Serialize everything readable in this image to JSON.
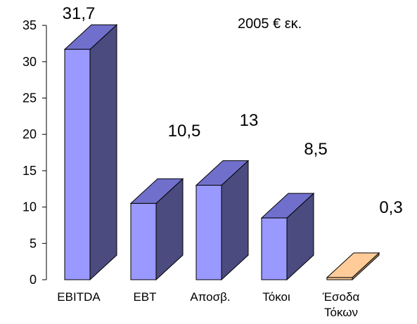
{
  "chart_data": {
    "type": "bar",
    "style": "3d-column",
    "categories": [
      "EBITDA",
      "EBT",
      "Αποσβ.",
      "Τόκοι",
      "Έσοδα Τόκων"
    ],
    "category_lines": [
      [
        "EBITDA"
      ],
      [
        "EBT"
      ],
      [
        "Αποσβ."
      ],
      [
        "Τόκοι"
      ],
      [
        "Έσοδα",
        "Τόκων"
      ]
    ],
    "values": [
      31.7,
      10.5,
      13,
      8.5,
      0.3
    ],
    "value_labels": [
      "31,7",
      "10,5",
      "13",
      "8,5",
      "0,3"
    ],
    "unit_annotation": "2005 € εκ.",
    "ylim": [
      0,
      35
    ],
    "yticks": [
      0,
      5,
      10,
      15,
      20,
      25,
      30,
      35
    ],
    "colors": {
      "front": [
        "#9999ff",
        "#9999ff",
        "#9999ff",
        "#9999ff",
        "#ffcc99"
      ],
      "top": [
        "#7070cc",
        "#7070cc",
        "#7070cc",
        "#7070cc",
        "#ffcc99"
      ],
      "side": [
        "#4b4b80",
        "#4b4b80",
        "#4b4b80",
        "#4b4b80",
        "#b58e66"
      ],
      "outline": "#000000"
    },
    "grid": false,
    "legend": "none"
  }
}
